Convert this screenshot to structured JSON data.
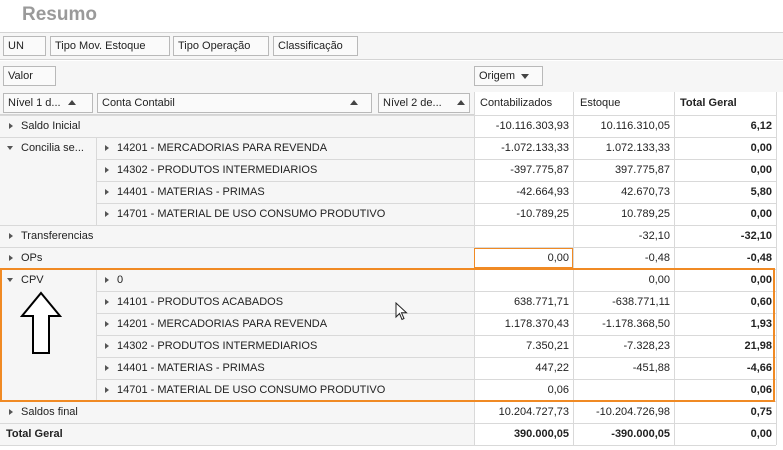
{
  "page": {
    "title": "Resumo"
  },
  "filters": {
    "un": "UN",
    "tipo_mov": "Tipo  Mov.  Estoque",
    "tipo_operacao": "Tipo Operação",
    "classificacao": "Classificação"
  },
  "data_field": {
    "valor": "Valor"
  },
  "column_field": {
    "origem": "Origem"
  },
  "row_headers": {
    "nivel1": "Nível 1 d...",
    "conta": "Conta Contabil",
    "nivel2": "Nível 2 de..."
  },
  "columns": {
    "contab": "Contabilizados",
    "estoque": "Estoque",
    "total": "Total Geral"
  },
  "rows": [
    {
      "l1": "Saldo Inicial",
      "exp": "collapsed",
      "sub": "",
      "contab": "-10.116.303,93",
      "estoque": "10.116.310,05",
      "total": "6,12"
    },
    {
      "l1": "Concilia se...",
      "exp": "expanded",
      "sub": "14201 - MERCADORIAS PARA REVENDA",
      "contab": "-1.072.133,33",
      "estoque": "1.072.133,33",
      "total": "0,00"
    },
    {
      "l1": "",
      "exp": "",
      "sub": "14302 - PRODUTOS INTERMEDIARIOS",
      "contab": "-397.775,87",
      "estoque": "397.775,87",
      "total": "0,00"
    },
    {
      "l1": "",
      "exp": "",
      "sub": "14401 - MATERIAS - PRIMAS",
      "contab": "-42.664,93",
      "estoque": "42.670,73",
      "total": "5,80"
    },
    {
      "l1": "",
      "exp": "",
      "sub": "14701 - MATERIAL DE USO CONSUMO PRODUTIVO",
      "contab": "-10.789,25",
      "estoque": "10.789,25",
      "total": "0,00"
    },
    {
      "l1": "Transferencias",
      "exp": "collapsed",
      "sub": "",
      "contab": "",
      "estoque": "-32,10",
      "total": "-32,10"
    },
    {
      "l1": "OPs",
      "exp": "collapsed",
      "sub": "",
      "contab": "0,00",
      "estoque": "-0,48",
      "total": "-0,48"
    },
    {
      "l1": "CPV",
      "exp": "expanded",
      "sub": "0",
      "contab": "",
      "estoque": "0,00",
      "total": "0,00"
    },
    {
      "l1": "",
      "exp": "",
      "sub": "14101 - PRODUTOS ACABADOS",
      "contab": "638.771,71",
      "estoque": "-638.771,11",
      "total": "0,60"
    },
    {
      "l1": "",
      "exp": "",
      "sub": "14201 - MERCADORIAS PARA REVENDA",
      "contab": "1.178.370,43",
      "estoque": "-1.178.368,50",
      "total": "1,93"
    },
    {
      "l1": "",
      "exp": "",
      "sub": "14302 - PRODUTOS INTERMEDIARIOS",
      "contab": "7.350,21",
      "estoque": "-7.328,23",
      "total": "21,98"
    },
    {
      "l1": "",
      "exp": "",
      "sub": "14401 - MATERIAS - PRIMAS",
      "contab": "447,22",
      "estoque": "-451,88",
      "total": "-4,66"
    },
    {
      "l1": "",
      "exp": "",
      "sub": "14701 - MATERIAL DE USO CONSUMO PRODUTIVO",
      "contab": "0,06",
      "estoque": "",
      "total": "0,06"
    },
    {
      "l1": "Saldos final",
      "exp": "collapsed",
      "sub": "",
      "contab": "10.204.727,73",
      "estoque": "-10.204.726,98",
      "total": "0,75"
    }
  ],
  "grand_total": {
    "label": "Total Geral",
    "contab": "390.000,05",
    "estoque": "-390.000,05",
    "total": "0,00"
  },
  "colors": {
    "highlight": "#f08a24",
    "header_bg": "#f6f6f6",
    "grid": "#d9d9d9"
  }
}
